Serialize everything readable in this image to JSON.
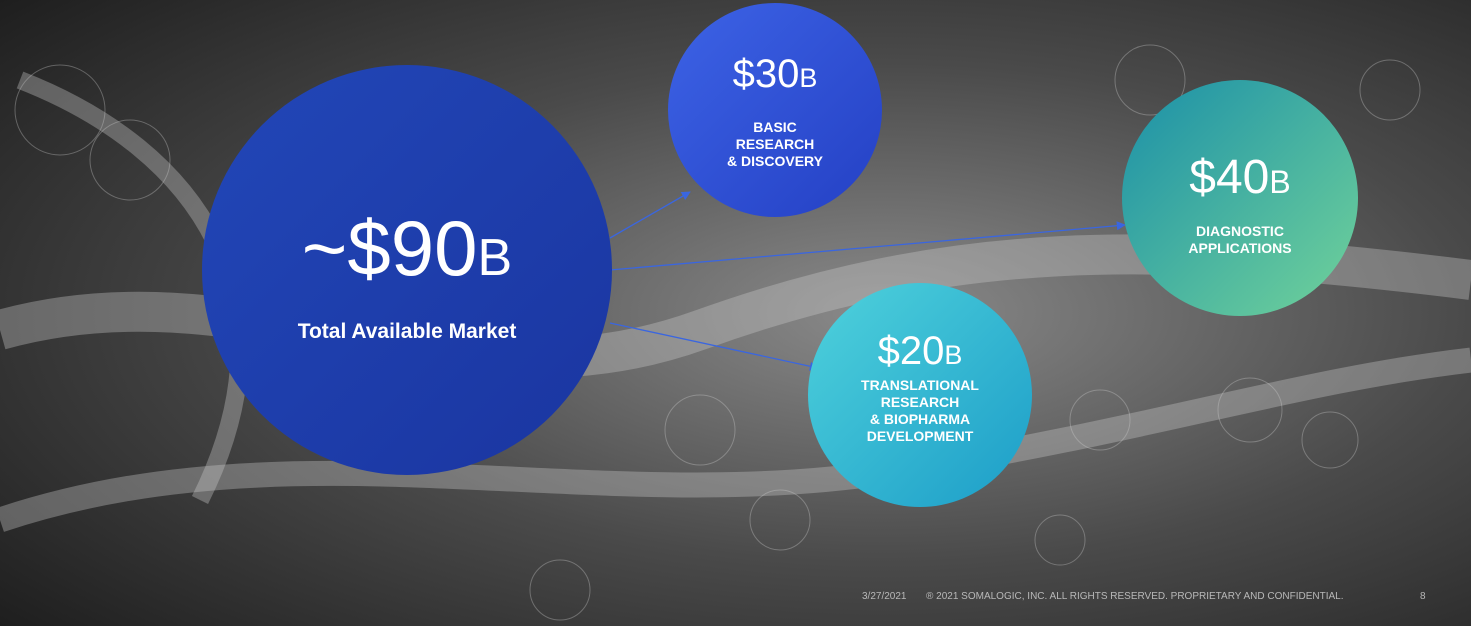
{
  "bubbles": [
    {
      "amount": "~$90",
      "unit": "B",
      "label": [
        "Total Available Market"
      ]
    },
    {
      "amount": "$30",
      "unit": "B",
      "label": [
        "BASIC",
        "RESEARCH",
        "& DISCOVERY"
      ]
    },
    {
      "amount": "$40",
      "unit": "B",
      "label": [
        "DIAGNOSTIC",
        "APPLICATIONS"
      ]
    },
    {
      "amount": "$20",
      "unit": "B",
      "label": [
        "TRANSLATIONAL",
        "RESEARCH",
        "& BIOPHARMA",
        "DEVELOPMENT"
      ]
    }
  ],
  "footer": {
    "date": "3/27/2021",
    "copyright": "® 2021 SOMALOGIC, INC. ALL RIGHTS RESERVED. PROPRIETARY AND CONFIDENTIAL.",
    "page": "8"
  }
}
